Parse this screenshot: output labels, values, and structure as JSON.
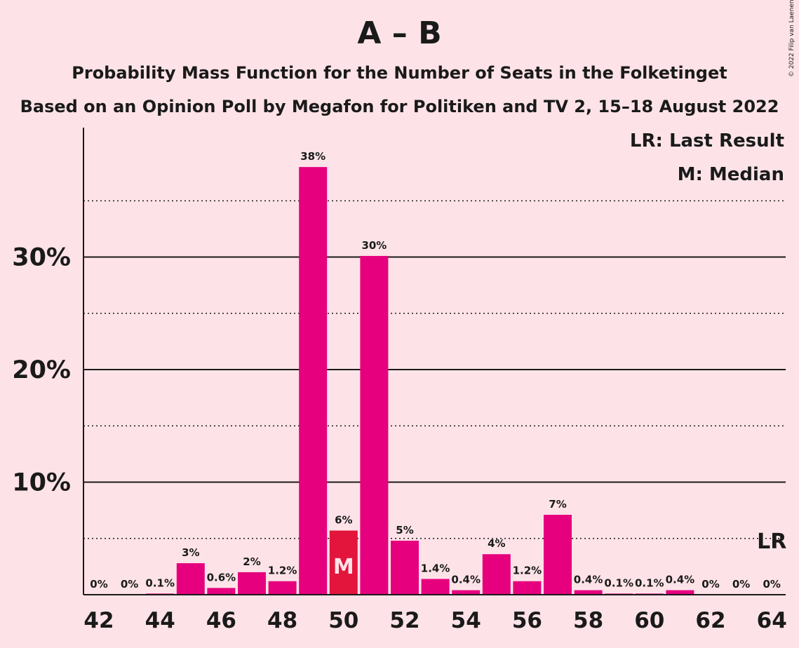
{
  "title": "A – B",
  "subtitle1": "Probability Mass Function for the Number of Seats in the Folketinget",
  "subtitle2": "Based on an Opinion Poll by Megafon for Politiken and TV 2, 15–18 August 2022",
  "copyright": "© 2022 Filip van Laenen",
  "legend": {
    "last_result": "LR: Last Result",
    "median": "M: Median"
  },
  "markers": {
    "median_letter": "M",
    "last_result_letter": "LR"
  },
  "colors": {
    "background": "#fde3e8",
    "bar": "#e6007e",
    "median_bar": "#e3153d"
  },
  "chart_data": {
    "type": "bar",
    "title": "A – B",
    "x": [
      42,
      43,
      44,
      45,
      46,
      47,
      48,
      49,
      50,
      51,
      52,
      53,
      54,
      55,
      56,
      57,
      58,
      59,
      60,
      61,
      62,
      63,
      64
    ],
    "values": [
      0,
      0,
      0.1,
      2.8,
      0.6,
      2.0,
      1.2,
      38.0,
      5.7,
      30.1,
      4.8,
      1.4,
      0.4,
      3.6,
      1.2,
      7.1,
      0.4,
      0.1,
      0.1,
      0.4,
      0,
      0,
      0
    ],
    "data_labels": [
      "0%",
      "0%",
      "0.1%",
      "3%",
      "0.6%",
      "2%",
      "1.2%",
      "38%",
      "6%",
      "30%",
      "5%",
      "1.4%",
      "0.4%",
      "4%",
      "1.2%",
      "7%",
      "0.4%",
      "0.1%",
      "0.1%",
      "0.4%",
      "0%",
      "0%",
      "0%"
    ],
    "median_seat": 50,
    "last_result_seat": 64,
    "x_tick_labels": [
      "42",
      "44",
      "46",
      "48",
      "50",
      "52",
      "54",
      "56",
      "58",
      "60",
      "62",
      "64"
    ],
    "y_tick_labels": [
      "10%",
      "20%",
      "30%"
    ],
    "y_ticks": [
      10,
      20,
      30
    ],
    "y_minor_ticks": [
      5,
      15,
      25,
      35
    ],
    "ylim": [
      0,
      41.5
    ],
    "grid": true,
    "legend_position": "top-right"
  }
}
